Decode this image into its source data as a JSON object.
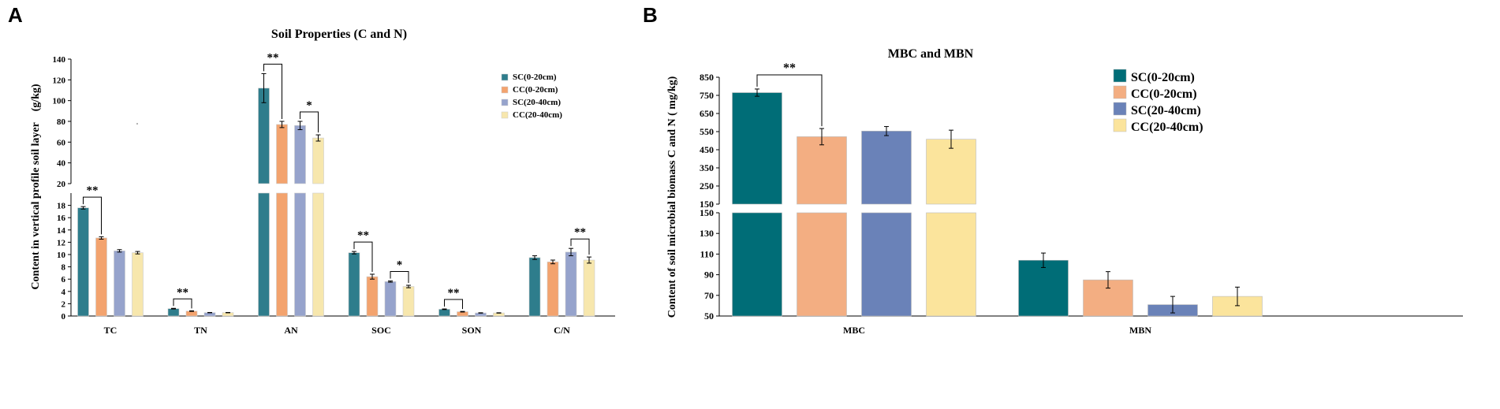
{
  "panels": [
    {
      "panel_label": "A",
      "chart_data": {
        "type": "bar",
        "title": "Soil Properties (C and N)",
        "xlabel": "",
        "ylabel": "Content in vertical profile soil layer　(g/kg)",
        "categories": [
          "TC",
          "TN",
          "AN",
          "SOC",
          "SON",
          "C/N"
        ],
        "series": [
          {
            "name": "SC(0-20cm)",
            "color": "#2e7d8c",
            "values": [
              17.6,
              1.2,
              112,
              10.3,
              1.1,
              9.5
            ],
            "errors": [
              0.2,
              0.05,
              14,
              0.2,
              0.05,
              0.3
            ]
          },
          {
            "name": "CC(0-20cm)",
            "color": "#f3a36e",
            "values": [
              12.7,
              0.8,
              77,
              6.4,
              0.7,
              8.8
            ],
            "errors": [
              0.2,
              0.05,
              3,
              0.4,
              0.05,
              0.3
            ]
          },
          {
            "name": "SC(20-40cm)",
            "color": "#96a3cc",
            "values": [
              10.6,
              0.55,
              76,
              5.6,
              0.5,
              10.4
            ],
            "errors": [
              0.2,
              0.03,
              4,
              0.1,
              0.03,
              0.6
            ]
          },
          {
            "name": "CC(20-40cm)",
            "color": "#f7e7ad",
            "values": [
              10.3,
              0.55,
              64,
              4.8,
              0.5,
              9.1
            ],
            "errors": [
              0.2,
              0.03,
              3,
              0.2,
              0.03,
              0.5
            ]
          }
        ],
        "axis_break": {
          "lower": [
            0,
            20
          ],
          "upper": [
            20,
            140
          ]
        },
        "lower_ticks": [
          0,
          2,
          4,
          6,
          8,
          10,
          12,
          14,
          16,
          18
        ],
        "upper_ticks": [
          20,
          40,
          60,
          80,
          100,
          120,
          140
        ],
        "annotations": [
          {
            "category": 0,
            "series_a": 0,
            "series_b": 1,
            "label": "**"
          },
          {
            "category": 1,
            "series_a": 0,
            "series_b": 1,
            "label": "**"
          },
          {
            "category": 2,
            "series_a": 0,
            "series_b": 1,
            "label": "**"
          },
          {
            "category": 2,
            "series_a": 2,
            "series_b": 3,
            "label": "*"
          },
          {
            "category": 3,
            "series_a": 0,
            "series_b": 1,
            "label": "**"
          },
          {
            "category": 3,
            "series_a": 2,
            "series_b": 3,
            "label": "*"
          },
          {
            "category": 4,
            "series_a": 0,
            "series_b": 1,
            "label": "**"
          },
          {
            "category": 5,
            "series_a": 2,
            "series_b": 3,
            "label": "**"
          }
        ],
        "legend_position": "top-right"
      }
    },
    {
      "panel_label": "B",
      "chart_data": {
        "type": "bar",
        "title": "MBC and MBN",
        "xlabel": "",
        "ylabel": "Content of soil microbial biomass C and N ( mg/kg)",
        "categories": [
          "MBC",
          "MBN"
        ],
        "series": [
          {
            "name": "SC(0-20cm)",
            "color": "#006d77",
            "values": [
              765,
              104
            ],
            "errors": [
              20,
              7
            ]
          },
          {
            "name": "CC(0-20cm)",
            "color": "#f3ae82",
            "values": [
              522,
              85
            ],
            "errors": [
              45,
              8
            ]
          },
          {
            "name": "SC(20-40cm)",
            "color": "#6a82b8",
            "values": [
              553,
              61
            ],
            "errors": [
              25,
              8
            ]
          },
          {
            "name": "CC(20-40cm)",
            "color": "#fbe49c",
            "values": [
              508,
              69
            ],
            "errors": [
              50,
              9
            ]
          }
        ],
        "axis_break": {
          "lower": [
            50,
            150
          ],
          "upper": [
            150,
            850
          ]
        },
        "lower_ticks": [
          50,
          70,
          90,
          110,
          130,
          150
        ],
        "upper_ticks": [
          150,
          250,
          350,
          450,
          550,
          650,
          750,
          850
        ],
        "annotations": [
          {
            "category": 0,
            "series_a": 0,
            "series_b": 1,
            "label": "**"
          }
        ],
        "legend_position": "top-right"
      }
    }
  ]
}
